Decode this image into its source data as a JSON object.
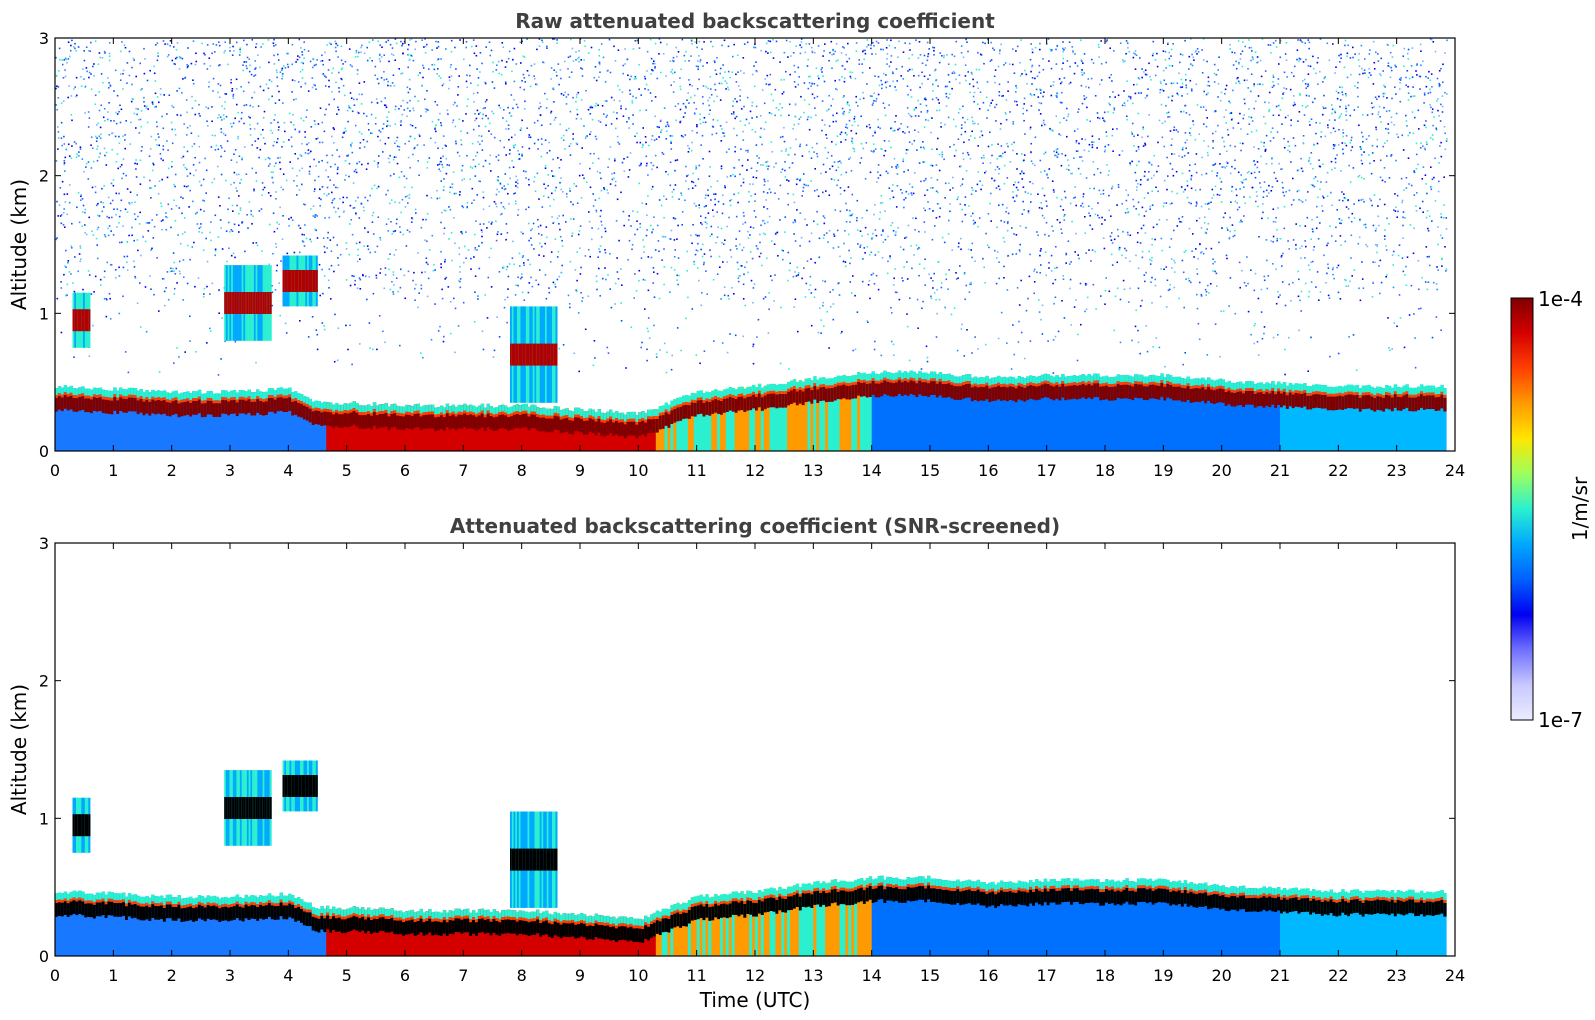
{
  "chart_data": [
    {
      "type": "heatmap",
      "title": "Raw attenuated backscattering coefficient",
      "ylabel": "Altitude (km)",
      "xlabel": "",
      "x_ticks": [
        "0",
        "1",
        "2",
        "3",
        "4",
        "5",
        "6",
        "7",
        "8",
        "9",
        "10",
        "11",
        "12",
        "13",
        "14",
        "15",
        "16",
        "17",
        "18",
        "19",
        "20",
        "21",
        "22",
        "23",
        "24"
      ],
      "y_ticks": [
        "0",
        "1",
        "2",
        "3"
      ],
      "xlim": [
        0,
        24
      ],
      "ylim": [
        0,
        3
      ],
      "grid": false,
      "screened": false,
      "layer_height_km": {
        "time": [
          0,
          1,
          2,
          3,
          4,
          4.5,
          5,
          6,
          7,
          8,
          9,
          10,
          11,
          12,
          13,
          14,
          15,
          16,
          17,
          18,
          19,
          20,
          21,
          22,
          23,
          24
        ],
        "top": [
          0.42,
          0.4,
          0.38,
          0.38,
          0.4,
          0.3,
          0.3,
          0.28,
          0.28,
          0.28,
          0.25,
          0.22,
          0.38,
          0.42,
          0.48,
          0.52,
          0.52,
          0.48,
          0.5,
          0.5,
          0.5,
          0.46,
          0.44,
          0.42,
          0.42,
          0.42
        ]
      },
      "cloud_features": [
        {
          "t0": 0.3,
          "t1": 0.6,
          "base": 0.75,
          "top": 1.15
        },
        {
          "t0": 2.9,
          "t1": 3.7,
          "base": 0.8,
          "top": 1.35
        },
        {
          "t0": 3.9,
          "t1": 4.5,
          "base": 1.05,
          "top": 1.42
        },
        {
          "t0": 7.8,
          "t1": 8.6,
          "base": 0.35,
          "top": 1.05
        }
      ]
    },
    {
      "type": "heatmap",
      "title": "Attenuated backscattering coefficient (SNR-screened)",
      "ylabel": "Altitude (km)",
      "xlabel": "Time (UTC)",
      "x_ticks": [
        "0",
        "1",
        "2",
        "3",
        "4",
        "5",
        "6",
        "7",
        "8",
        "9",
        "10",
        "11",
        "12",
        "13",
        "14",
        "15",
        "16",
        "17",
        "18",
        "19",
        "20",
        "21",
        "22",
        "23",
        "24"
      ],
      "y_ticks": [
        "0",
        "1",
        "2",
        "3"
      ],
      "xlim": [
        0,
        24
      ],
      "ylim": [
        0,
        3
      ],
      "grid": false,
      "screened": true,
      "layer_height_km": {
        "time": [
          0,
          1,
          2,
          3,
          4,
          4.5,
          5,
          6,
          7,
          8,
          9,
          10,
          11,
          12,
          13,
          14,
          15,
          16,
          17,
          18,
          19,
          20,
          21,
          22,
          23,
          24
        ],
        "top": [
          0.42,
          0.4,
          0.38,
          0.38,
          0.4,
          0.3,
          0.3,
          0.28,
          0.28,
          0.28,
          0.25,
          0.22,
          0.38,
          0.42,
          0.48,
          0.52,
          0.52,
          0.48,
          0.5,
          0.5,
          0.5,
          0.46,
          0.44,
          0.42,
          0.42,
          0.42
        ]
      },
      "cloud_features": [
        {
          "t0": 0.3,
          "t1": 0.6,
          "base": 0.75,
          "top": 1.15
        },
        {
          "t0": 2.9,
          "t1": 3.7,
          "base": 0.8,
          "top": 1.35
        },
        {
          "t0": 3.9,
          "t1": 4.5,
          "base": 1.05,
          "top": 1.42
        },
        {
          "t0": 7.8,
          "t1": 8.6,
          "base": 0.35,
          "top": 1.05
        }
      ]
    }
  ],
  "colorbar": {
    "max_label": "1e-4",
    "min_label": "1e-7",
    "unit_label": "1/m/sr",
    "colors": [
      "#7f0000",
      "#d40000",
      "#ff4000",
      "#ff9a00",
      "#ffe600",
      "#9cff5e",
      "#2af0d0",
      "#00a8ff",
      "#0060ff",
      "#0000f0",
      "#6f6fff",
      "#c8c8ff",
      "#ececff"
    ]
  }
}
